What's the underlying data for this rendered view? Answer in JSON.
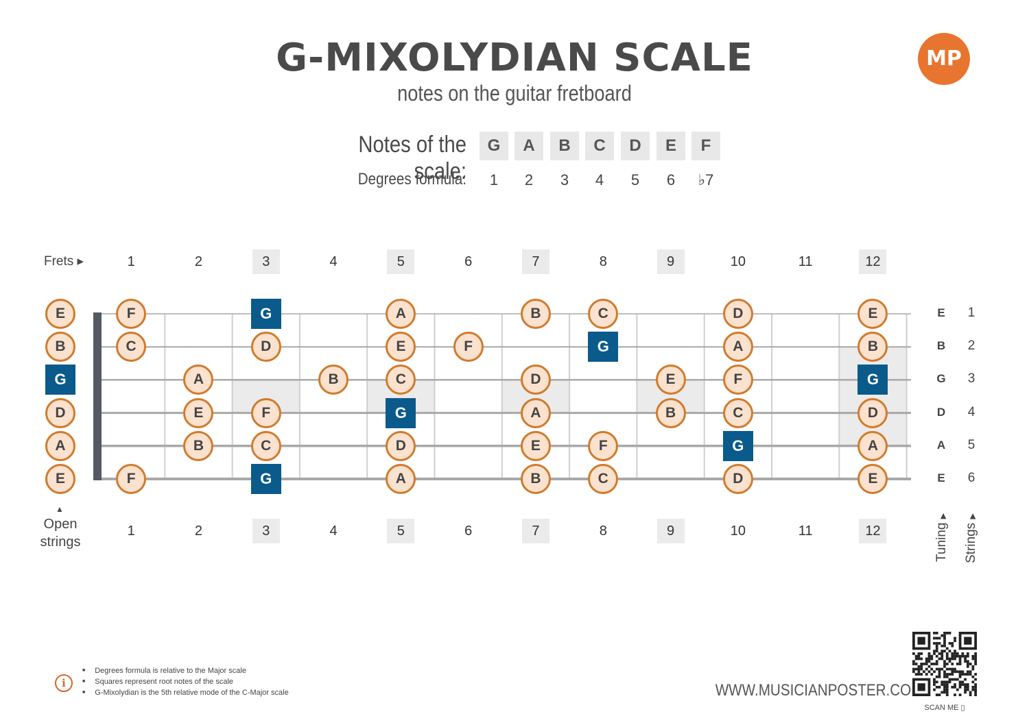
{
  "header": {
    "title": "G-MIXOLYDIAN SCALE",
    "subtitle": "notes on the guitar fretboard",
    "logo_text": "MP"
  },
  "scale": {
    "notes_label": "Notes of the scale:",
    "notes": [
      "G",
      "A",
      "B",
      "C",
      "D",
      "E",
      "F"
    ],
    "degrees_label": "Degrees formula:",
    "degrees": [
      "1",
      "2",
      "3",
      "4",
      "5",
      "6",
      "♭7"
    ]
  },
  "fretboard": {
    "frets_label": "Frets ▸",
    "fret_numbers": [
      "1",
      "2",
      "3",
      "4",
      "5",
      "6",
      "7",
      "8",
      "9",
      "10",
      "11",
      "12"
    ],
    "marked_frets": [
      3,
      5,
      7,
      9,
      12
    ],
    "open_label_line1": "Open",
    "open_label_line2": "strings",
    "open_strings": [
      "E",
      "B",
      "G",
      "D",
      "A",
      "E"
    ],
    "tuning_label": "Tuning",
    "strings_label": "Strings",
    "tuning": [
      "E",
      "B",
      "G",
      "D",
      "A",
      "E"
    ],
    "string_numbers": [
      "1",
      "2",
      "3",
      "4",
      "5",
      "6"
    ],
    "notes": [
      {
        "string": 1,
        "fret": 1,
        "note": "F"
      },
      {
        "string": 1,
        "fret": 3,
        "note": "G",
        "root": true
      },
      {
        "string": 1,
        "fret": 5,
        "note": "A"
      },
      {
        "string": 1,
        "fret": 7,
        "note": "B"
      },
      {
        "string": 1,
        "fret": 8,
        "note": "C"
      },
      {
        "string": 1,
        "fret": 10,
        "note": "D"
      },
      {
        "string": 1,
        "fret": 12,
        "note": "E"
      },
      {
        "string": 2,
        "fret": 1,
        "note": "C"
      },
      {
        "string": 2,
        "fret": 3,
        "note": "D"
      },
      {
        "string": 2,
        "fret": 5,
        "note": "E"
      },
      {
        "string": 2,
        "fret": 6,
        "note": "F"
      },
      {
        "string": 2,
        "fret": 8,
        "note": "G",
        "root": true
      },
      {
        "string": 2,
        "fret": 10,
        "note": "A"
      },
      {
        "string": 2,
        "fret": 12,
        "note": "B"
      },
      {
        "string": 3,
        "fret": 2,
        "note": "A"
      },
      {
        "string": 3,
        "fret": 4,
        "note": "B"
      },
      {
        "string": 3,
        "fret": 5,
        "note": "C"
      },
      {
        "string": 3,
        "fret": 7,
        "note": "D"
      },
      {
        "string": 3,
        "fret": 9,
        "note": "E"
      },
      {
        "string": 3,
        "fret": 10,
        "note": "F"
      },
      {
        "string": 3,
        "fret": 12,
        "note": "G",
        "root": true
      },
      {
        "string": 4,
        "fret": 2,
        "note": "E"
      },
      {
        "string": 4,
        "fret": 3,
        "note": "F"
      },
      {
        "string": 4,
        "fret": 5,
        "note": "G",
        "root": true
      },
      {
        "string": 4,
        "fret": 7,
        "note": "A"
      },
      {
        "string": 4,
        "fret": 9,
        "note": "B"
      },
      {
        "string": 4,
        "fret": 10,
        "note": "C"
      },
      {
        "string": 4,
        "fret": 12,
        "note": "D"
      },
      {
        "string": 5,
        "fret": 2,
        "note": "B"
      },
      {
        "string": 5,
        "fret": 3,
        "note": "C"
      },
      {
        "string": 5,
        "fret": 5,
        "note": "D"
      },
      {
        "string": 5,
        "fret": 7,
        "note": "E"
      },
      {
        "string": 5,
        "fret": 8,
        "note": "F"
      },
      {
        "string": 5,
        "fret": 10,
        "note": "G",
        "root": true
      },
      {
        "string": 5,
        "fret": 12,
        "note": "A"
      },
      {
        "string": 6,
        "fret": 1,
        "note": "F"
      },
      {
        "string": 6,
        "fret": 3,
        "note": "G",
        "root": true
      },
      {
        "string": 6,
        "fret": 5,
        "note": "A"
      },
      {
        "string": 6,
        "fret": 7,
        "note": "B"
      },
      {
        "string": 6,
        "fret": 8,
        "note": "C"
      },
      {
        "string": 6,
        "fret": 10,
        "note": "D"
      },
      {
        "string": 6,
        "fret": 12,
        "note": "E"
      }
    ],
    "open_root_string": 3
  },
  "footer": {
    "notes": [
      "Degrees formula is relative to the Major scale",
      "Squares represent root notes of the scale",
      "G-Mixolydian is the 5th relative mode of the C-Major scale"
    ],
    "info_icon": "i",
    "website": "WWW.MUSICIANPOSTER.COM",
    "scan_label": "SCAN ME ▯"
  },
  "colors": {
    "accent": "#d17a2b",
    "note_fill": "#fbe2cf",
    "root_fill": "#0a5a8c",
    "logo": "#e8752f"
  }
}
